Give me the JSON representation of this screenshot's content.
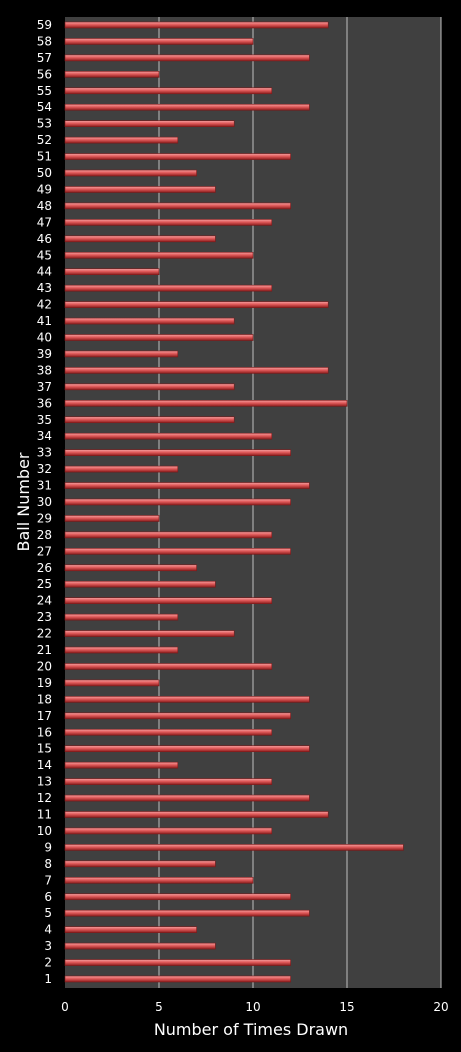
{
  "chart_data": {
    "type": "bar",
    "orientation": "horizontal",
    "xlabel": "Number of Times Drawn",
    "ylabel": "Ball Number",
    "xlim": [
      0,
      20
    ],
    "xticks": [
      0,
      5,
      10,
      15,
      20
    ],
    "grid": true,
    "colors": {
      "background": "#000000",
      "plot_area": "#404040",
      "bar": "#e05a5a",
      "bar_edge": "#7a1a1a",
      "grid": "#bfbfbf",
      "text": "#ffffff"
    },
    "categories": [
      "1",
      "2",
      "3",
      "4",
      "5",
      "6",
      "7",
      "8",
      "9",
      "10",
      "11",
      "12",
      "13",
      "14",
      "15",
      "16",
      "17",
      "18",
      "19",
      "20",
      "21",
      "22",
      "23",
      "24",
      "25",
      "26",
      "27",
      "28",
      "29",
      "30",
      "31",
      "32",
      "33",
      "34",
      "35",
      "36",
      "37",
      "38",
      "39",
      "40",
      "41",
      "42",
      "43",
      "44",
      "45",
      "46",
      "47",
      "48",
      "49",
      "50",
      "51",
      "52",
      "53",
      "54",
      "55",
      "56",
      "57",
      "58",
      "59"
    ],
    "values": [
      12,
      12,
      8,
      7,
      13,
      12,
      10,
      8,
      18,
      11,
      14,
      13,
      11,
      6,
      13,
      11,
      12,
      13,
      5,
      11,
      6,
      9,
      6,
      11,
      8,
      7,
      12,
      11,
      5,
      12,
      13,
      6,
      12,
      11,
      9,
      15,
      9,
      14,
      6,
      10,
      9,
      14,
      11,
      5,
      10,
      8,
      11,
      12,
      8,
      7,
      12,
      6,
      9,
      13,
      11,
      5,
      13,
      10,
      14
    ]
  }
}
